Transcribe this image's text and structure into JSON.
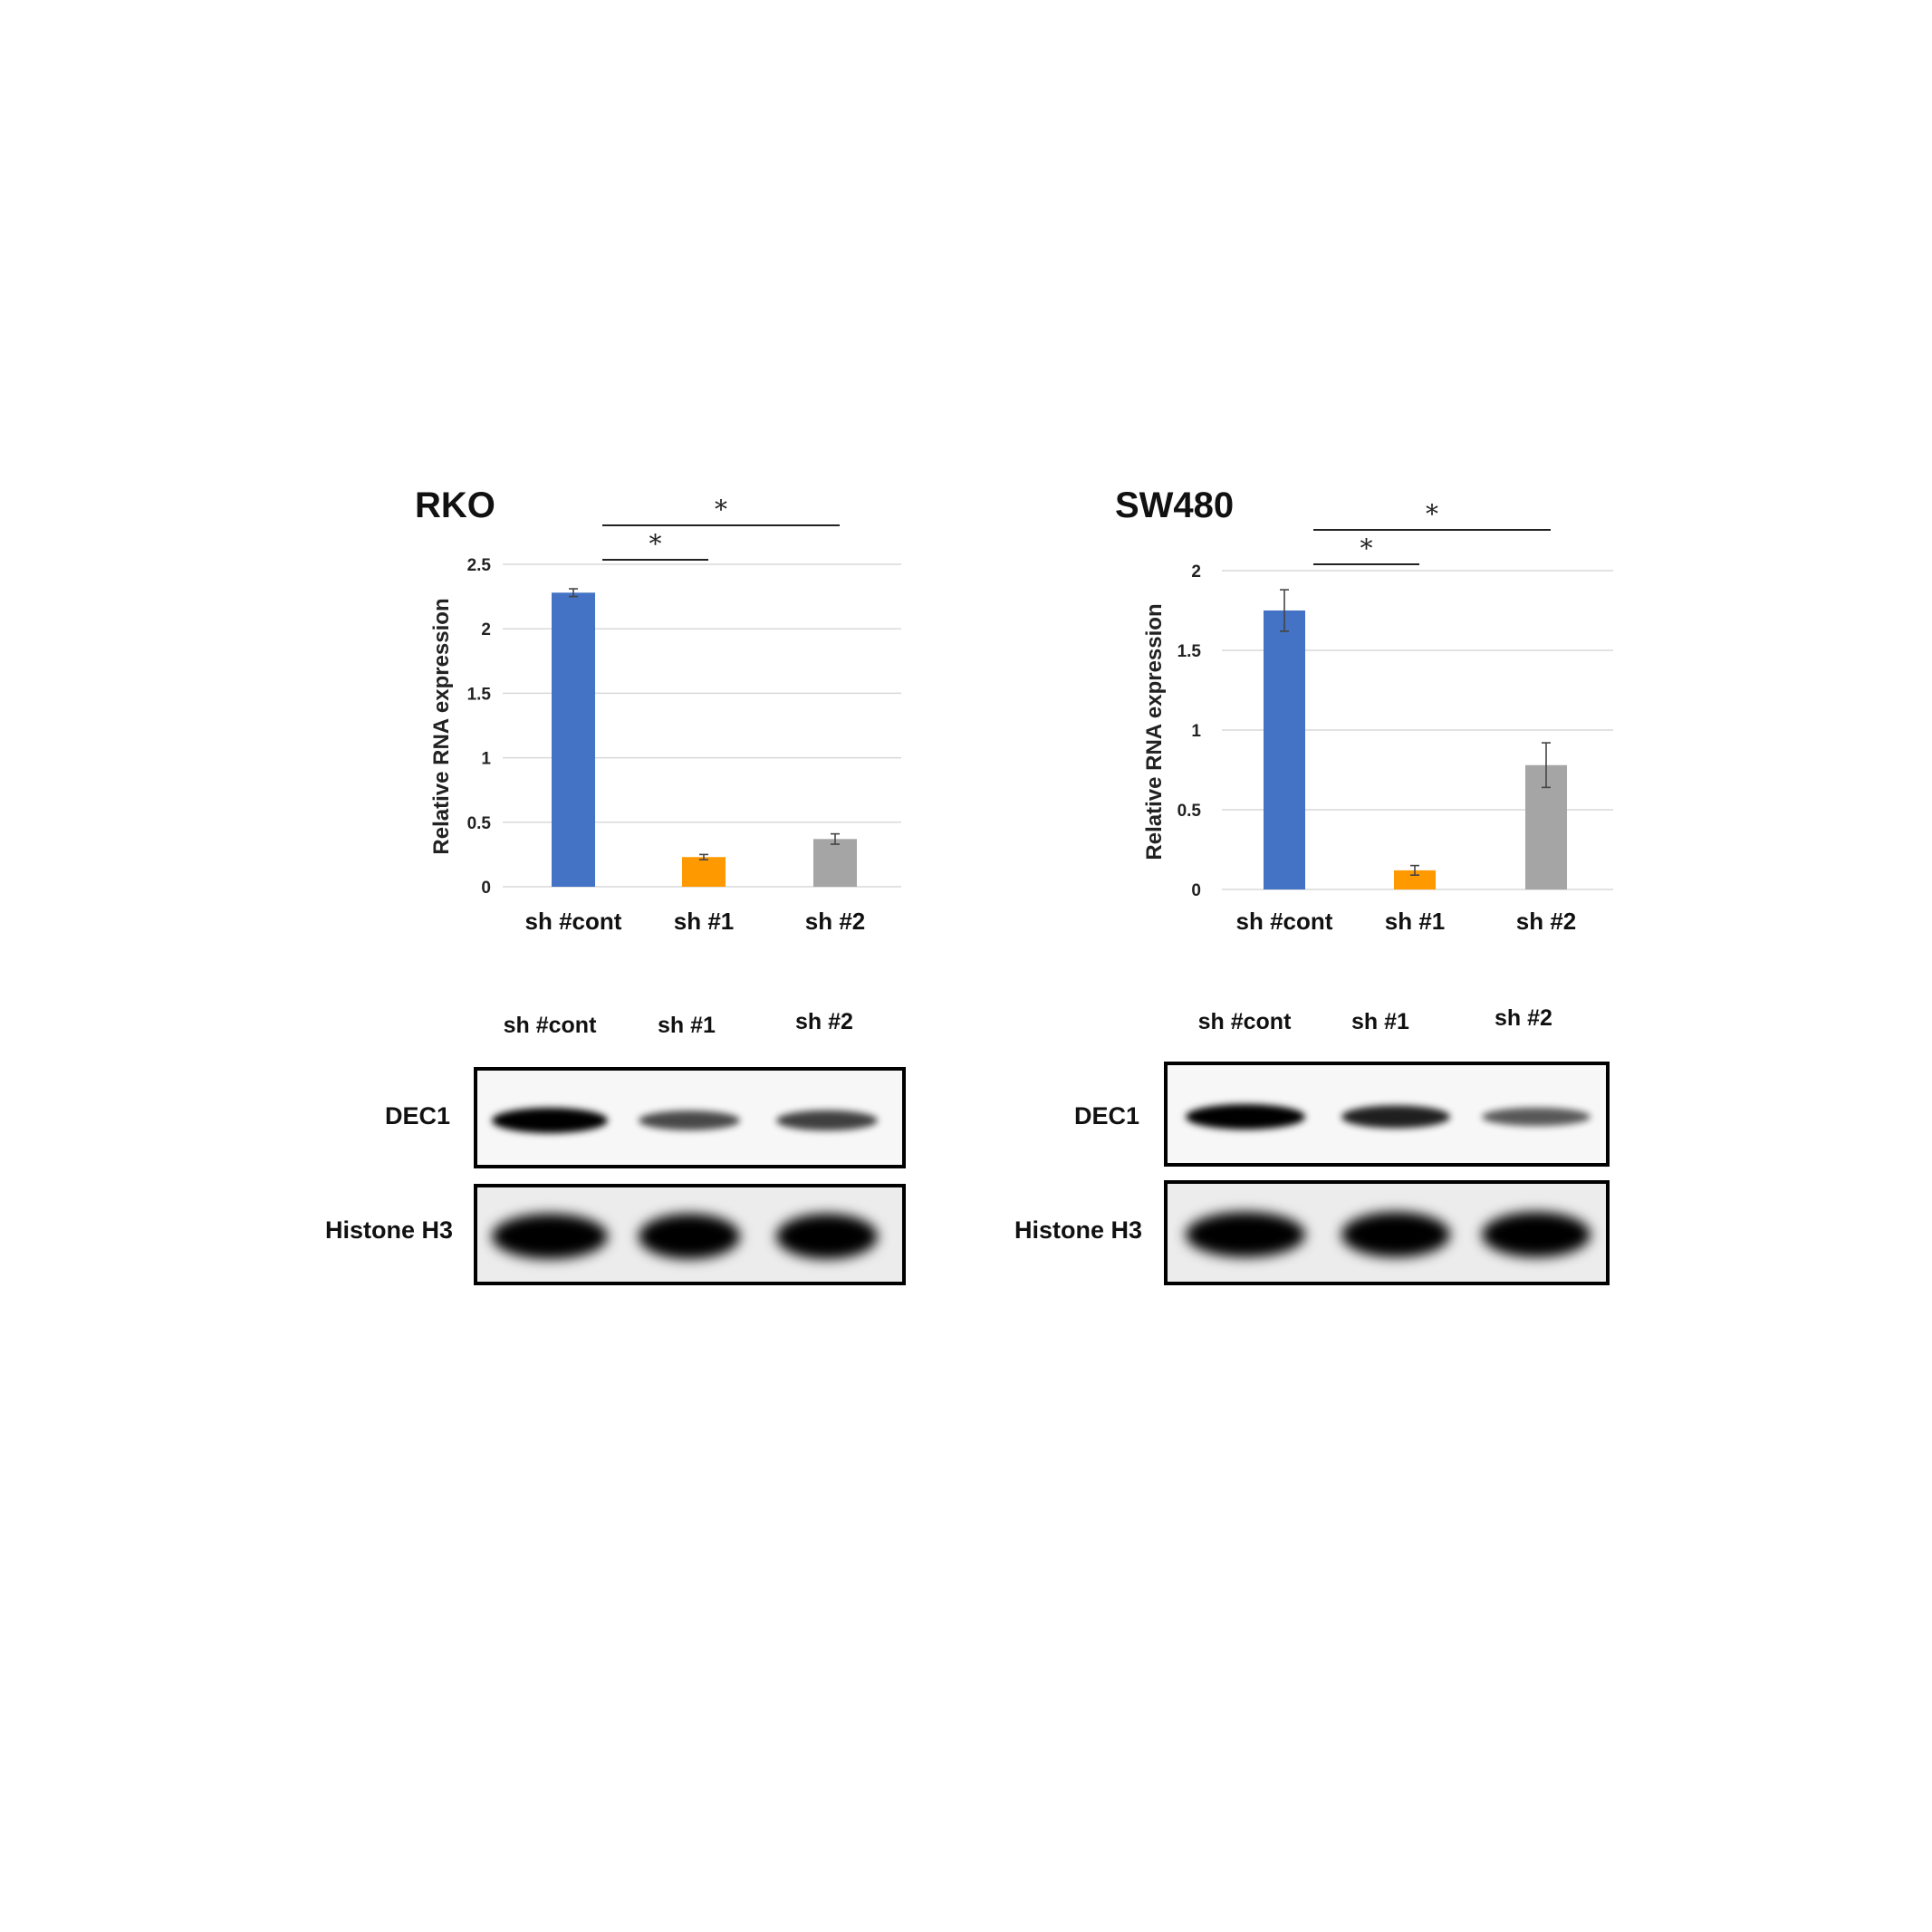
{
  "chart_data": [
    {
      "type": "bar",
      "title": "RKO",
      "xlabel": "",
      "ylabel": "Relative RNA expression",
      "ylim": [
        0,
        2.5
      ],
      "yticks": [
        "0",
        "0.5",
        "1",
        "1.5",
        "2",
        "2.5"
      ],
      "categories": [
        "sh #cont",
        "sh #1",
        "sh #2"
      ],
      "values": [
        2.28,
        0.23,
        0.37
      ],
      "errors": [
        0.03,
        0.02,
        0.04
      ],
      "colors": [
        "#4472C4",
        "#FF9900",
        "#A5A5A5"
      ],
      "grid": true,
      "significance": [
        {
          "from": "sh #cont",
          "to": "sh #1",
          "label": "*"
        },
        {
          "from": "sh #cont",
          "to": "sh #2",
          "label": "*"
        }
      ]
    },
    {
      "type": "bar",
      "title": "SW480",
      "xlabel": "",
      "ylabel": "Relative RNA expression",
      "ylim": [
        0,
        2
      ],
      "yticks": [
        "0",
        "0.5",
        "1",
        "1.5",
        "2"
      ],
      "categories": [
        "sh #cont",
        "sh #1",
        "sh #2"
      ],
      "values": [
        1.75,
        0.12,
        0.78
      ],
      "errors": [
        0.13,
        0.03,
        0.14
      ],
      "colors": [
        "#4472C4",
        "#FF9900",
        "#A5A5A5"
      ],
      "grid": true,
      "significance": [
        {
          "from": "sh #cont",
          "to": "sh #1",
          "label": "*"
        },
        {
          "from": "sh #cont",
          "to": "sh #2",
          "label": "*"
        }
      ]
    }
  ],
  "blots": [
    {
      "lanes": [
        "sh #cont",
        "sh #1",
        "sh #2"
      ],
      "rows": [
        {
          "label": "DEC1",
          "intensities": [
            1.0,
            0.55,
            0.6
          ]
        },
        {
          "label": "Histone H3",
          "intensities": [
            1.0,
            1.0,
            1.0
          ]
        }
      ]
    },
    {
      "lanes": [
        "sh #cont",
        "sh #1",
        "sh #2"
      ],
      "rows": [
        {
          "label": "DEC1",
          "intensities": [
            1.0,
            0.8,
            0.45
          ]
        },
        {
          "label": "Histone H3",
          "intensities": [
            1.0,
            1.0,
            1.0
          ]
        }
      ]
    }
  ]
}
